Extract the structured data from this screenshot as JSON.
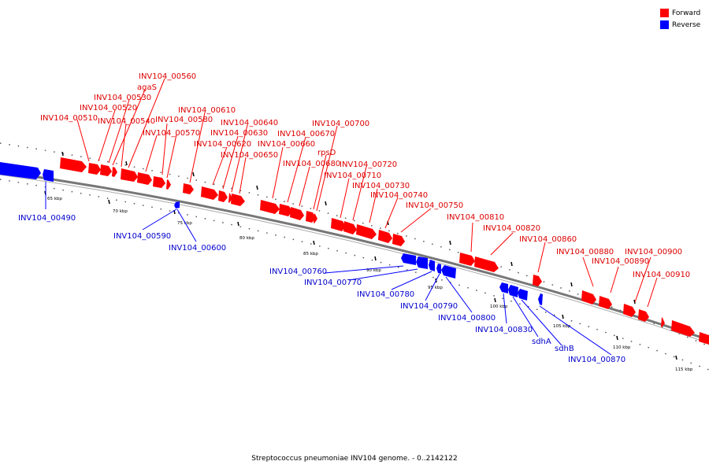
{
  "legend": {
    "items": [
      {
        "label": "Forward",
        "color": "#ff0000"
      },
      {
        "label": "Reverse",
        "color": "#0000ff"
      }
    ]
  },
  "caption": "Streptococcus pneumoniae INV104 genome. - 0..2142122",
  "colors": {
    "forward": "#ff0000",
    "reverse": "#0000ff",
    "backbone": "#777777"
  },
  "ticks": [
    "65 kbp",
    "70 kbp",
    "75 kbp",
    "80 kbp",
    "85 kbp",
    "90 kbp",
    "95 kbp",
    "100 kbp",
    "105 kbp",
    "110 kbp",
    "115 kbp"
  ],
  "forward_labels": [
    "INV104_00510",
    "INV104_00520",
    "INV104_00530",
    "agaS",
    "INV104_00560",
    "INV104_00540",
    "INV104_00570",
    "INV104_00580",
    "INV104_00610",
    "INV104_00620",
    "INV104_00630",
    "INV104_00640",
    "INV104_00650",
    "INV104_00660",
    "INV104_00670",
    "INV104_00680",
    "rpsD",
    "INV104_00700",
    "INV104_00710",
    "INV104_00720",
    "INV104_00730",
    "INV104_00740",
    "INV104_00750",
    "INV104_00810",
    "INV104_00820",
    "INV104_00860",
    "INV104_00880",
    "INV104_00890",
    "INV104_00900",
    "INV104_00910"
  ],
  "reverse_labels": [
    "INV104_00490",
    "INV104_00590",
    "INV104_00600",
    "INV104_00760",
    "INV104_00770",
    "INV104_00780",
    "INV104_00790",
    "INV104_00800",
    "INV104_00830",
    "sdhA",
    "sdhB",
    "INV104_00870"
  ]
}
